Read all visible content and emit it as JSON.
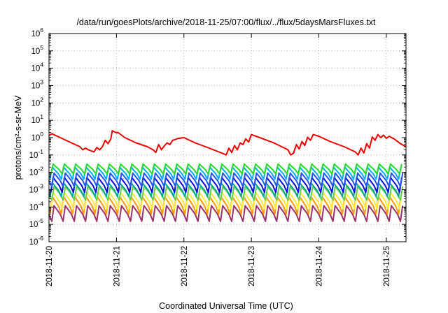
{
  "chart_data": {
    "type": "line",
    "title": "/data/run/goesPlots/archive/2018-11-25/07:00/flux/../flux/5daysMarsFluxes.txt",
    "xlabel": "Coordinated Universal Time (UTC)",
    "ylabel": "protons/cm²-s-sr-MeV",
    "yscale": "log",
    "ylim": [
      1e-06,
      1000000.0
    ],
    "y_ticks": [
      {
        "exp": -6,
        "base": "10",
        "sup": "-6"
      },
      {
        "exp": -5,
        "base": "10",
        "sup": "-5"
      },
      {
        "exp": -4,
        "base": "10",
        "sup": "-4"
      },
      {
        "exp": -3,
        "base": "10",
        "sup": "-3"
      },
      {
        "exp": -2,
        "base": "10",
        "sup": "-2"
      },
      {
        "exp": -1,
        "base": "10",
        "sup": "-1"
      },
      {
        "exp": 0,
        "base": "10",
        "sup": "0"
      },
      {
        "exp": 1,
        "base": "10",
        "sup": "1"
      },
      {
        "exp": 2,
        "base": "10",
        "sup": "2"
      },
      {
        "exp": 3,
        "base": "10",
        "sup": "3"
      },
      {
        "exp": 4,
        "base": "10",
        "sup": "4"
      },
      {
        "exp": 5,
        "base": "10",
        "sup": "5"
      },
      {
        "exp": 6,
        "base": "10",
        "sup": "6"
      }
    ],
    "x_range_days": [
      "2018-11-20T00:00",
      "2018-11-25T07:00"
    ],
    "x_ticks": [
      "2018-11-20",
      "2018-11-21",
      "2018-11-22",
      "2018-11-23",
      "2018-11-24",
      "2018-11-25"
    ],
    "grid": true,
    "grid_style": "dotted",
    "series": [
      {
        "color": "#ee0000",
        "points": [
          [
            "2018-11-20T00:00",
            1.3
          ],
          [
            "2018-11-20T01:00",
            1.7
          ],
          [
            "2018-11-20T04:00",
            1.0
          ],
          [
            "2018-11-20T08:00",
            0.5
          ],
          [
            "2018-11-20T11:00",
            0.3
          ],
          [
            "2018-11-20T12:00",
            0.2
          ],
          [
            "2018-11-20T13:00",
            0.25
          ],
          [
            "2018-11-20T14:00",
            0.2
          ],
          [
            "2018-11-20T16:00",
            0.15
          ],
          [
            "2018-11-20T17:00",
            0.27
          ],
          [
            "2018-11-20T18:00",
            0.2
          ],
          [
            "2018-11-20T19:00",
            0.3
          ],
          [
            "2018-11-20T20:00",
            0.7
          ],
          [
            "2018-11-20T21:00",
            0.45
          ],
          [
            "2018-11-20T22:00",
            0.85
          ],
          [
            "2018-11-20T22:30",
            2.5
          ],
          [
            "2018-11-21T00:00",
            1.9
          ],
          [
            "2018-11-21T00:30",
            2.0
          ],
          [
            "2018-11-21T03:00",
            1.0
          ],
          [
            "2018-11-21T07:00",
            0.5
          ],
          [
            "2018-11-21T11:00",
            0.3
          ],
          [
            "2018-11-21T13:00",
            0.2
          ],
          [
            "2018-11-21T14:00",
            0.14
          ],
          [
            "2018-11-21T15:00",
            0.4
          ],
          [
            "2018-11-21T16:00",
            0.2
          ],
          [
            "2018-11-21T17:00",
            0.33
          ],
          [
            "2018-11-21T18:00",
            0.5
          ],
          [
            "2018-11-21T19:00",
            0.4
          ],
          [
            "2018-11-21T20:00",
            0.7
          ],
          [
            "2018-11-21T22:00",
            0.9
          ],
          [
            "2018-11-22T00:00",
            1.0
          ],
          [
            "2018-11-22T04:00",
            0.5
          ],
          [
            "2018-11-22T09:00",
            0.25
          ],
          [
            "2018-11-22T14:00",
            0.12
          ],
          [
            "2018-11-22T15:00",
            0.1
          ],
          [
            "2018-11-22T16:00",
            0.25
          ],
          [
            "2018-11-22T17:00",
            0.14
          ],
          [
            "2018-11-22T18:00",
            0.35
          ],
          [
            "2018-11-22T19:00",
            0.2
          ],
          [
            "2018-11-22T20:00",
            0.5
          ],
          [
            "2018-11-22T21:00",
            0.4
          ],
          [
            "2018-11-22T22:00",
            0.85
          ],
          [
            "2018-11-22T23:00",
            0.55
          ],
          [
            "2018-11-23T00:00",
            1.5
          ],
          [
            "2018-11-23T03:00",
            1.0
          ],
          [
            "2018-11-23T08:00",
            0.5
          ],
          [
            "2018-11-23T13:00",
            0.2
          ],
          [
            "2018-11-23T14:00",
            0.1
          ],
          [
            "2018-11-23T15:00",
            0.13
          ],
          [
            "2018-11-23T16:00",
            0.4
          ],
          [
            "2018-11-23T17:00",
            0.22
          ],
          [
            "2018-11-23T18:00",
            0.6
          ],
          [
            "2018-11-23T19:00",
            0.35
          ],
          [
            "2018-11-23T20:00",
            1.05
          ],
          [
            "2018-11-23T21:00",
            0.7
          ],
          [
            "2018-11-23T22:00",
            1.5
          ],
          [
            "2018-11-24T00:00",
            1.2
          ],
          [
            "2018-11-24T04:00",
            0.6
          ],
          [
            "2018-11-24T09:00",
            0.3
          ],
          [
            "2018-11-24T13:00",
            0.15
          ],
          [
            "2018-11-24T14:00",
            0.1
          ],
          [
            "2018-11-24T15:00",
            0.25
          ],
          [
            "2018-11-24T16:00",
            0.13
          ],
          [
            "2018-11-24T17:00",
            0.45
          ],
          [
            "2018-11-24T18:00",
            0.25
          ],
          [
            "2018-11-24T19:00",
            1.1
          ],
          [
            "2018-11-24T20:00",
            0.7
          ],
          [
            "2018-11-24T21:00",
            1.5
          ],
          [
            "2018-11-24T22:00",
            1.0
          ],
          [
            "2018-11-24T23:00",
            1.4
          ],
          [
            "2018-11-25T00:00",
            0.9
          ],
          [
            "2018-11-25T01:00",
            1.2
          ],
          [
            "2018-11-25T03:00",
            0.8
          ],
          [
            "2018-11-25T05:00",
            0.45
          ],
          [
            "2018-11-25T07:00",
            0.3
          ]
        ]
      },
      {
        "color": "#22dd22",
        "pattern": "sawtooth",
        "period_hours": 4,
        "low": 0.008,
        "high": 0.03
      },
      {
        "color": "#00aaff",
        "pattern": "sawtooth",
        "period_hours": 4,
        "low": 0.004,
        "high": 0.02
      },
      {
        "color": "#2255ee",
        "pattern": "sawtooth",
        "period_hours": 4,
        "low": 0.0015,
        "high": 0.009
      },
      {
        "color": "#0a0adf",
        "pattern": "sawtooth",
        "period_hours": 4,
        "low": 0.0007,
        "high": 0.005
      },
      {
        "color": "#00aa88",
        "pattern": "sawtooth",
        "period_hours": 4,
        "low": 0.0004,
        "high": 0.0025
      },
      {
        "color": "#66cc55",
        "pattern": "sawtooth",
        "period_hours": 4,
        "low": 0.00025,
        "high": 0.0015
      },
      {
        "color": "#ffee33",
        "pattern": "sawtooth",
        "period_hours": 4,
        "low": 8e-05,
        "high": 0.0007
      },
      {
        "color": "#ff9900",
        "pattern": "sawtooth",
        "period_hours": 4,
        "low": 4e-05,
        "high": 0.0004
      },
      {
        "color": "#993366",
        "pattern": "sawtooth",
        "period_hours": 4,
        "low": 1.5e-05,
        "high": 0.00012
      }
    ]
  }
}
